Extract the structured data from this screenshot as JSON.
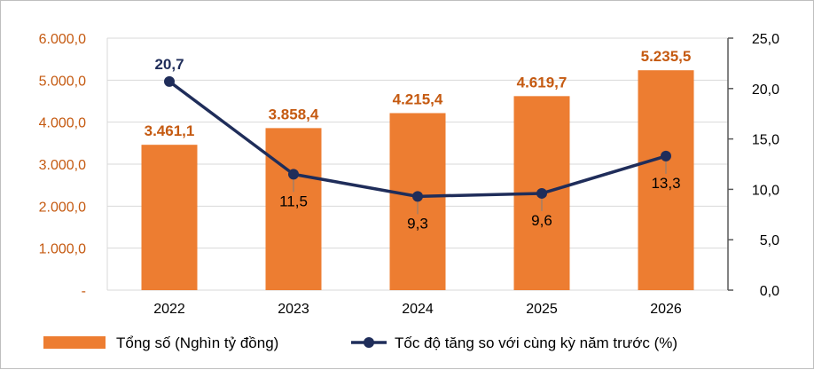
{
  "chart_data": {
    "type": "bar",
    "categories": [
      "2022",
      "2023",
      "2024",
      "2025",
      "2026"
    ],
    "series": [
      {
        "name": "Tổng số (Nghìn tỷ đồng)",
        "type": "bar",
        "axis": "left",
        "values": [
          3461.1,
          3858.4,
          4215.4,
          4619.7,
          5235.5
        ],
        "labels": [
          "3.461,1",
          "3.858,4",
          "4.215,4",
          "4.619,7",
          "5.235,5"
        ],
        "color": "#ed7d31"
      },
      {
        "name": "Tốc độ tăng so với cùng kỳ năm trước (%)",
        "type": "line",
        "axis": "right",
        "values": [
          20.7,
          11.5,
          9.3,
          9.6,
          13.3
        ],
        "labels": [
          "20,7",
          "11,5",
          "9,3",
          "9,6",
          "13,3"
        ],
        "color": "#1f2d5a"
      }
    ],
    "y_left": {
      "ylim": [
        0,
        6000
      ],
      "ticks": [
        0,
        1000,
        2000,
        3000,
        4000,
        5000,
        6000
      ],
      "tick_labels": [
        "-",
        "1.000,0",
        "2.000,0",
        "3.000,0",
        "4.000,0",
        "5.000,0",
        "6.000,0"
      ],
      "color": "#c55a11"
    },
    "y_right": {
      "ylim": [
        0,
        25
      ],
      "ticks": [
        0,
        5,
        10,
        15,
        20,
        25
      ],
      "tick_labels": [
        "0,0",
        "5,0",
        "10,0",
        "15,0",
        "20,0",
        "25,0"
      ]
    },
    "grid": true,
    "legend": "bottom"
  }
}
